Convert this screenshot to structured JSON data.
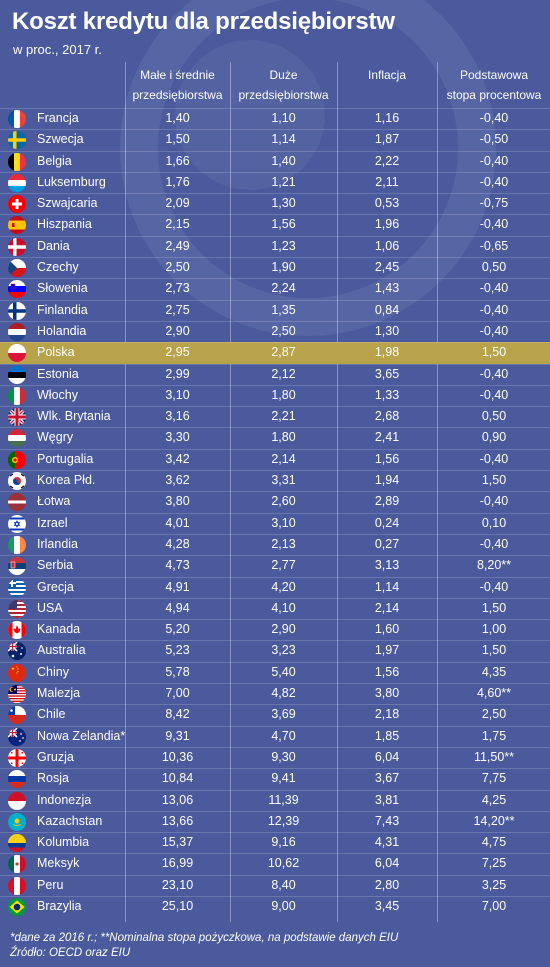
{
  "title": "Koszt kredytu dla przedsiębiorstw",
  "subtitle": "w proc., 2017 r.",
  "headers": {
    "sme_line1": "Małe i średnie",
    "sme_line2": "przedsiębiorstwa",
    "large_line1": "Duże",
    "large_line2": "przedsiębiorstwa",
    "inflation": "Inflacja",
    "base_line1": "Podstawowa",
    "base_line2": "stopa procentowa"
  },
  "rows": [
    {
      "country": "Francja",
      "flag": "fr",
      "sme": "1,40",
      "large": "1,10",
      "infl": "1,16",
      "rate": "-0,40"
    },
    {
      "country": "Szwecja",
      "flag": "se",
      "sme": "1,50",
      "large": "1,14",
      "infl": "1,87",
      "rate": "-0,50"
    },
    {
      "country": "Belgia",
      "flag": "be",
      "sme": "1,66",
      "large": "1,40",
      "infl": "2,22",
      "rate": "-0,40"
    },
    {
      "country": "Luksemburg",
      "flag": "lu",
      "sme": "1,76",
      "large": "1,21",
      "infl": "2,11",
      "rate": "-0,40"
    },
    {
      "country": "Szwajcaria",
      "flag": "ch",
      "sme": "2,09",
      "large": "1,30",
      "infl": "0,53",
      "rate": "-0,75"
    },
    {
      "country": "Hiszpania",
      "flag": "es",
      "sme": "2,15",
      "large": "1,56",
      "infl": "1,96",
      "rate": "-0,40"
    },
    {
      "country": "Dania",
      "flag": "dk",
      "sme": "2,49",
      "large": "1,23",
      "infl": "1,06",
      "rate": "-0,65"
    },
    {
      "country": "Czechy",
      "flag": "cz",
      "sme": "2,50",
      "large": "1,90",
      "infl": "2,45",
      "rate": "0,50"
    },
    {
      "country": "Słowenia",
      "flag": "si",
      "sme": "2,73",
      "large": "2,24",
      "infl": "1,43",
      "rate": "-0,40"
    },
    {
      "country": "Finlandia",
      "flag": "fi",
      "sme": "2,75",
      "large": "1,35",
      "infl": "0,84",
      "rate": "-0,40"
    },
    {
      "country": "Holandia",
      "flag": "nl",
      "sme": "2,90",
      "large": "2,50",
      "infl": "1,30",
      "rate": "-0,40"
    },
    {
      "country": "Polska",
      "flag": "pl",
      "sme": "2,95",
      "large": "2,87",
      "infl": "1,98",
      "rate": "1,50",
      "highlight": true
    },
    {
      "country": "Estonia",
      "flag": "ee",
      "sme": "2,99",
      "large": "2,12",
      "infl": "3,65",
      "rate": "-0,40"
    },
    {
      "country": "Włochy",
      "flag": "it",
      "sme": "3,10",
      "large": "1,80",
      "infl": "1,33",
      "rate": "-0,40"
    },
    {
      "country": "Wlk. Brytania",
      "flag": "gb",
      "sme": "3,16",
      "large": "2,21",
      "infl": "2,68",
      "rate": "0,50"
    },
    {
      "country": "Węgry",
      "flag": "hu",
      "sme": "3,30",
      "large": "1,80",
      "infl": "2,41",
      "rate": "0,90"
    },
    {
      "country": "Portugalia",
      "flag": "pt",
      "sme": "3,42",
      "large": "2,14",
      "infl": "1,56",
      "rate": "-0,40"
    },
    {
      "country": "Korea Płd.",
      "flag": "kr",
      "sme": "3,62",
      "large": "3,31",
      "infl": "1,94",
      "rate": "1,50"
    },
    {
      "country": "Łotwa",
      "flag": "lv",
      "sme": "3,80",
      "large": "2,60",
      "infl": "2,89",
      "rate": "-0,40"
    },
    {
      "country": "Izrael",
      "flag": "il",
      "sme": "4,01",
      "large": "3,10",
      "infl": "0,24",
      "rate": "0,10"
    },
    {
      "country": "Irlandia",
      "flag": "ie",
      "sme": "4,28",
      "large": "2,13",
      "infl": "0,27",
      "rate": "-0,40"
    },
    {
      "country": "Serbia",
      "flag": "rs",
      "sme": "4,73",
      "large": "2,77",
      "infl": "3,13",
      "rate": "8,20**"
    },
    {
      "country": "Grecja",
      "flag": "gr",
      "sme": "4,91",
      "large": "4,20",
      "infl": "1,14",
      "rate": "-0,40"
    },
    {
      "country": "USA",
      "flag": "us",
      "sme": "4,94",
      "large": "4,10",
      "infl": "2,14",
      "rate": "1,50"
    },
    {
      "country": "Kanada",
      "flag": "ca",
      "sme": "5,20",
      "large": "2,90",
      "infl": "1,60",
      "rate": "1,00"
    },
    {
      "country": "Australia",
      "flag": "au",
      "sme": "5,23",
      "large": "3,23",
      "infl": "1,97",
      "rate": "1,50"
    },
    {
      "country": "Chiny",
      "flag": "cn",
      "sme": "5,78",
      "large": "5,40",
      "infl": "1,56",
      "rate": "4,35"
    },
    {
      "country": "Malezja",
      "flag": "my",
      "sme": "7,00",
      "large": "4,82",
      "infl": "3,80",
      "rate": "4,60**"
    },
    {
      "country": "Chile",
      "flag": "cl",
      "sme": "8,42",
      "large": "3,69",
      "infl": "2,18",
      "rate": "2,50"
    },
    {
      "country": "Nowa Zelandia*",
      "flag": "nz",
      "sme": "9,31",
      "large": "4,70",
      "infl": "1,85",
      "rate": "1,75"
    },
    {
      "country": "Gruzja",
      "flag": "ge",
      "sme": "10,36",
      "large": "9,30",
      "infl": "6,04",
      "rate": "11,50**"
    },
    {
      "country": "Rosja",
      "flag": "ru",
      "sme": "10,84",
      "large": "9,41",
      "infl": "3,67",
      "rate": "7,75"
    },
    {
      "country": "Indonezja",
      "flag": "id",
      "sme": "13,06",
      "large": "11,39",
      "infl": "3,81",
      "rate": "4,25"
    },
    {
      "country": "Kazachstan",
      "flag": "kz",
      "sme": "13,66",
      "large": "12,39",
      "infl": "7,43",
      "rate": "14,20**"
    },
    {
      "country": "Kolumbia",
      "flag": "co",
      "sme": "15,37",
      "large": "9,16",
      "infl": "4,31",
      "rate": "4,75"
    },
    {
      "country": "Meksyk",
      "flag": "mx",
      "sme": "16,99",
      "large": "10,62",
      "infl": "6,04",
      "rate": "7,25"
    },
    {
      "country": "Peru",
      "flag": "pe",
      "sme": "23,10",
      "large": "8,40",
      "infl": "2,80",
      "rate": "3,25"
    },
    {
      "country": "Brazylia",
      "flag": "br",
      "sme": "25,10",
      "large": "9,00",
      "infl": "3,45",
      "rate": "7,00"
    }
  ],
  "footnote1": "*dane za 2016 r.; **Nominalna stopa pożyczkowa, na podstawie danych EIU",
  "footnote2": "Źródło: OECD oraz EIU",
  "colors": {
    "background": "#4a5a9c",
    "highlight": "#b8a24a"
  }
}
